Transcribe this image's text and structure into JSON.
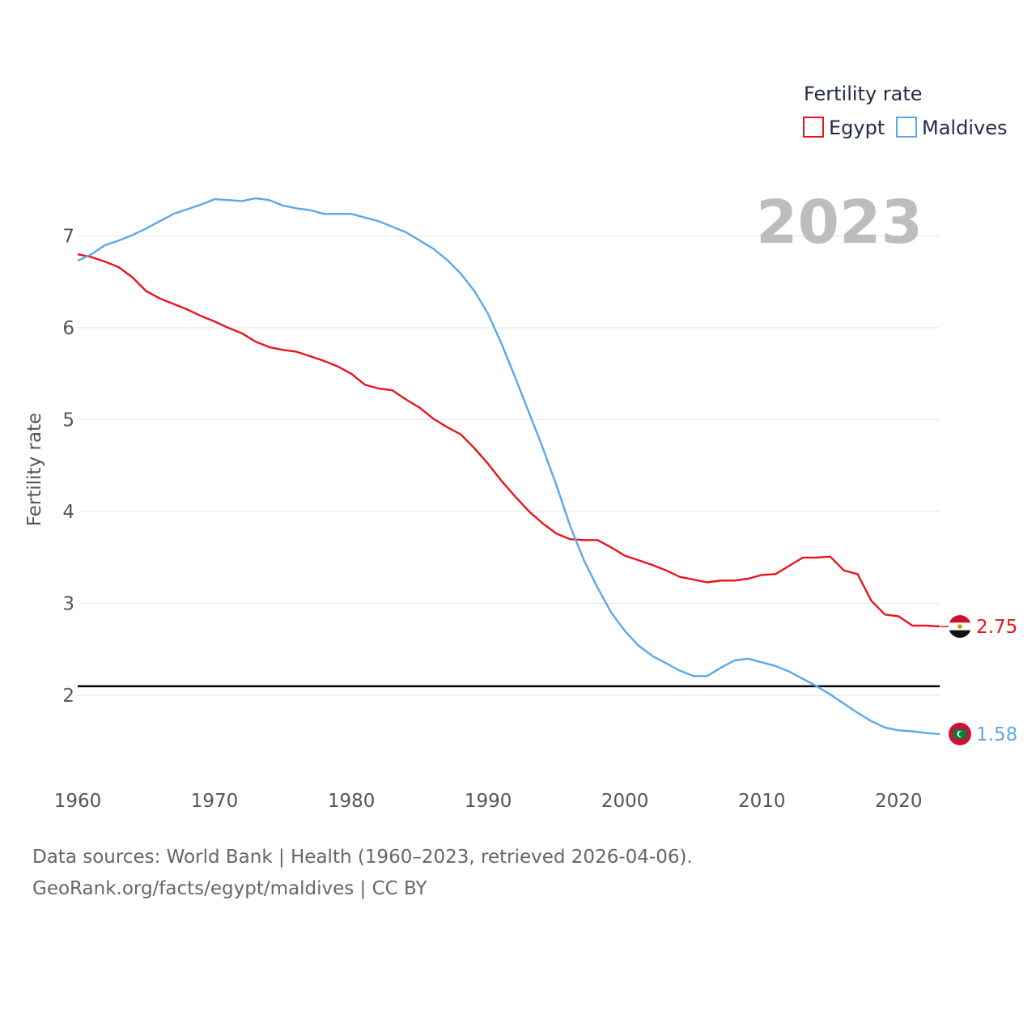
{
  "chart_data": {
    "type": "line",
    "title": "",
    "legend_title": "Fertility rate",
    "ylabel": "Fertility rate",
    "xlabel": "",
    "xlim": [
      1960,
      2023
    ],
    "ylim": [
      1.2,
      7.85
    ],
    "x_ticks": [
      1960,
      1970,
      1980,
      1990,
      2000,
      2010,
      2020
    ],
    "y_ticks": [
      2,
      3,
      4,
      5,
      6,
      7
    ],
    "year_label": "2023",
    "reference_line": {
      "value": 2.1,
      "color": "#000000"
    },
    "legend_position": "top-right",
    "series": [
      {
        "name": "Egypt",
        "color": "#e8141e",
        "end_label": "2.75",
        "x": [
          1960,
          1961,
          1962,
          1963,
          1964,
          1965,
          1966,
          1967,
          1968,
          1969,
          1970,
          1971,
          1972,
          1973,
          1974,
          1975,
          1976,
          1977,
          1978,
          1979,
          1980,
          1981,
          1982,
          1983,
          1984,
          1985,
          1986,
          1987,
          1988,
          1989,
          1990,
          1991,
          1992,
          1993,
          1994,
          1995,
          1996,
          1997,
          1998,
          1999,
          2000,
          2001,
          2002,
          2003,
          2004,
          2005,
          2006,
          2007,
          2008,
          2009,
          2010,
          2011,
          2012,
          2013,
          2014,
          2015,
          2016,
          2017,
          2018,
          2019,
          2020,
          2021,
          2022,
          2023
        ],
        "values": [
          6.8,
          6.77,
          6.72,
          6.66,
          6.55,
          6.4,
          6.32,
          6.26,
          6.2,
          6.13,
          6.07,
          6.0,
          5.94,
          5.85,
          5.79,
          5.76,
          5.74,
          5.69,
          5.64,
          5.58,
          5.5,
          5.38,
          5.34,
          5.32,
          5.22,
          5.13,
          5.01,
          4.92,
          4.84,
          4.69,
          4.52,
          4.33,
          4.16,
          4.0,
          3.87,
          3.76,
          3.7,
          3.69,
          3.69,
          3.61,
          3.52,
          3.47,
          3.42,
          3.36,
          3.29,
          3.26,
          3.23,
          3.25,
          3.25,
          3.27,
          3.31,
          3.32,
          3.41,
          3.5,
          3.5,
          3.51,
          3.36,
          3.32,
          3.03,
          2.88,
          2.86,
          2.76,
          2.76,
          2.75
        ]
      },
      {
        "name": "Maldives",
        "color": "#5ca8e8",
        "end_label": "1.58",
        "x": [
          1960,
          1961,
          1962,
          1963,
          1964,
          1965,
          1966,
          1967,
          1968,
          1969,
          1970,
          1971,
          1972,
          1973,
          1974,
          1975,
          1976,
          1977,
          1978,
          1979,
          1980,
          1981,
          1982,
          1983,
          1984,
          1985,
          1986,
          1987,
          1988,
          1989,
          1990,
          1991,
          1992,
          1993,
          1994,
          1995,
          1996,
          1997,
          1998,
          1999,
          2000,
          2001,
          2002,
          2003,
          2004,
          2005,
          2006,
          2007,
          2008,
          2009,
          2010,
          2011,
          2012,
          2013,
          2014,
          2015,
          2016,
          2017,
          2018,
          2019,
          2020,
          2021,
          2022,
          2023
        ],
        "values": [
          6.73,
          6.8,
          6.9,
          6.95,
          7.01,
          7.08,
          7.16,
          7.24,
          7.29,
          7.34,
          7.4,
          7.39,
          7.38,
          7.41,
          7.39,
          7.33,
          7.3,
          7.28,
          7.24,
          7.24,
          7.24,
          7.2,
          7.16,
          7.1,
          7.04,
          6.95,
          6.86,
          6.74,
          6.59,
          6.4,
          6.15,
          5.82,
          5.45,
          5.07,
          4.69,
          4.28,
          3.84,
          3.47,
          3.17,
          2.9,
          2.7,
          2.54,
          2.43,
          2.35,
          2.27,
          2.21,
          2.21,
          2.3,
          2.38,
          2.4,
          2.36,
          2.32,
          2.26,
          2.18,
          2.1,
          2.01,
          1.91,
          1.81,
          1.72,
          1.65,
          1.62,
          1.61,
          1.59,
          1.58
        ]
      }
    ]
  },
  "footer": {
    "sources": "Data sources: World Bank | Health (1960–2023, retrieved 2026-04-06).",
    "credit": "GeoRank.org/facts/egypt/maldives | CC BY"
  }
}
